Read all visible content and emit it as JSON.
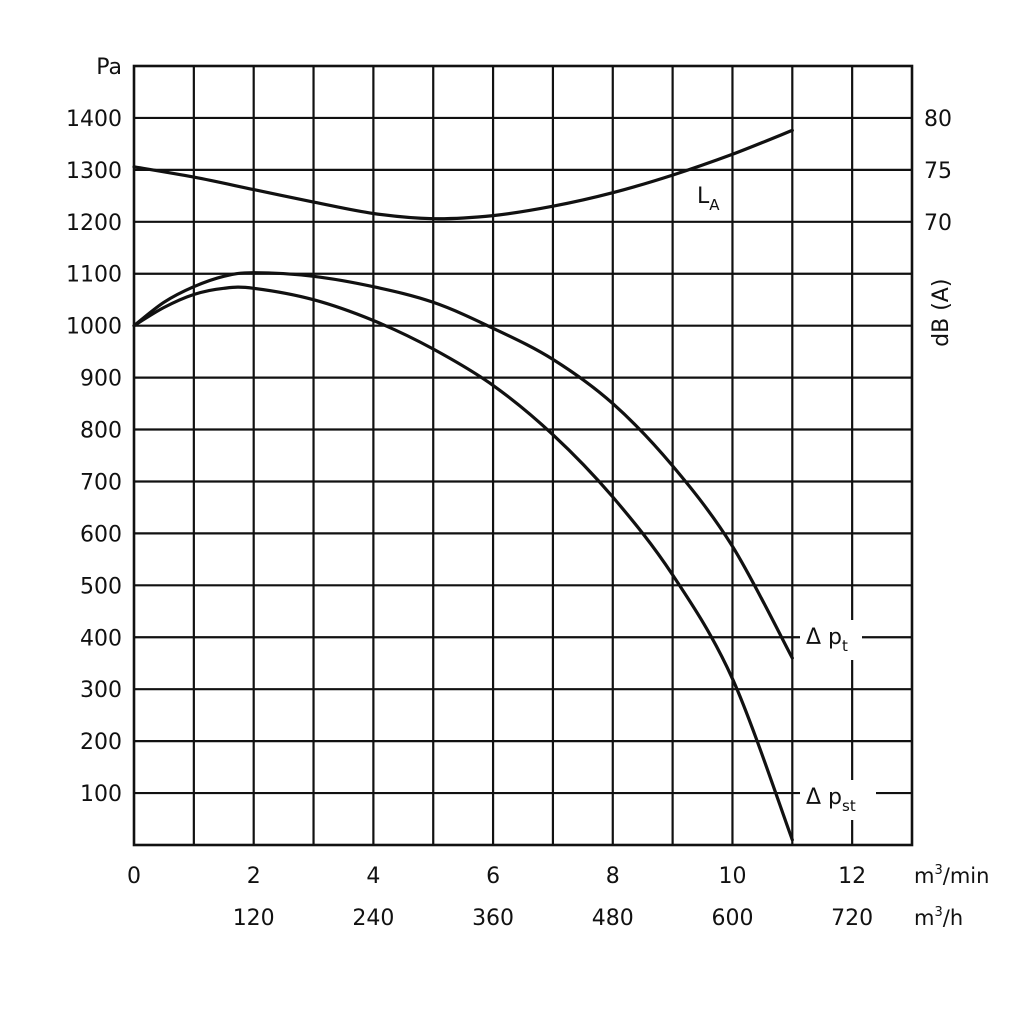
{
  "chart_data": {
    "type": "line",
    "title": "",
    "x_axis": {
      "unit_primary": "m³/min",
      "unit_secondary": "m³/h",
      "range": [
        0,
        13
      ],
      "grid_step": 1,
      "ticks_primary": [
        {
          "value": 0,
          "label": "0"
        },
        {
          "value": 2,
          "label": "2"
        },
        {
          "value": 4,
          "label": "4"
        },
        {
          "value": 6,
          "label": "6"
        },
        {
          "value": 8,
          "label": "8"
        },
        {
          "value": 10,
          "label": "10"
        },
        {
          "value": 12,
          "label": "12"
        }
      ],
      "ticks_secondary": [
        {
          "value": 2,
          "label": "120"
        },
        {
          "value": 4,
          "label": "240"
        },
        {
          "value": 6,
          "label": "360"
        },
        {
          "value": 8,
          "label": "480"
        },
        {
          "value": 10,
          "label": "600"
        },
        {
          "value": 12,
          "label": "720"
        }
      ]
    },
    "y_axis_left": {
      "unit": "Pa",
      "range": [
        0,
        1500
      ],
      "grid_step": 100,
      "ticks": [
        100,
        200,
        300,
        400,
        500,
        600,
        700,
        800,
        900,
        1000,
        1100,
        1200,
        1300,
        1400
      ]
    },
    "y_axis_right": {
      "label": "dB (A)",
      "ticks": [
        {
          "value": 70,
          "label": "70"
        },
        {
          "value": 75,
          "label": "75"
        },
        {
          "value": 80,
          "label": "80"
        }
      ],
      "mapping": {
        "db_70_at_pa": 1200,
        "pa_per_db": 20
      }
    },
    "grid": true,
    "series": [
      {
        "name": "L",
        "name_sub": "A",
        "axis": "right",
        "x": [
          0,
          1,
          2,
          3,
          4,
          5,
          6,
          7,
          8,
          9,
          10,
          11
        ],
        "y": [
          75.3,
          74.3,
          73.1,
          71.9,
          70.8,
          70.3,
          70.6,
          71.5,
          72.8,
          74.5,
          76.5,
          78.8
        ]
      },
      {
        "name": "Δ p",
        "name_sub": "t",
        "axis": "left",
        "x": [
          0,
          0.5,
          1,
          1.5,
          2,
          3,
          4,
          5,
          6,
          7,
          8,
          9,
          10,
          11
        ],
        "y": [
          1000,
          1045,
          1075,
          1095,
          1102,
          1095,
          1075,
          1045,
          995,
          935,
          850,
          730,
          575,
          360
        ]
      },
      {
        "name": "Δ p",
        "name_sub": "st",
        "axis": "left",
        "x": [
          0,
          0.5,
          1,
          1.5,
          2,
          3,
          4,
          5,
          6,
          7,
          8,
          9,
          10,
          11
        ],
        "y": [
          1000,
          1035,
          1060,
          1072,
          1072,
          1050,
          1010,
          955,
          885,
          790,
          670,
          520,
          320,
          10
        ]
      }
    ]
  }
}
